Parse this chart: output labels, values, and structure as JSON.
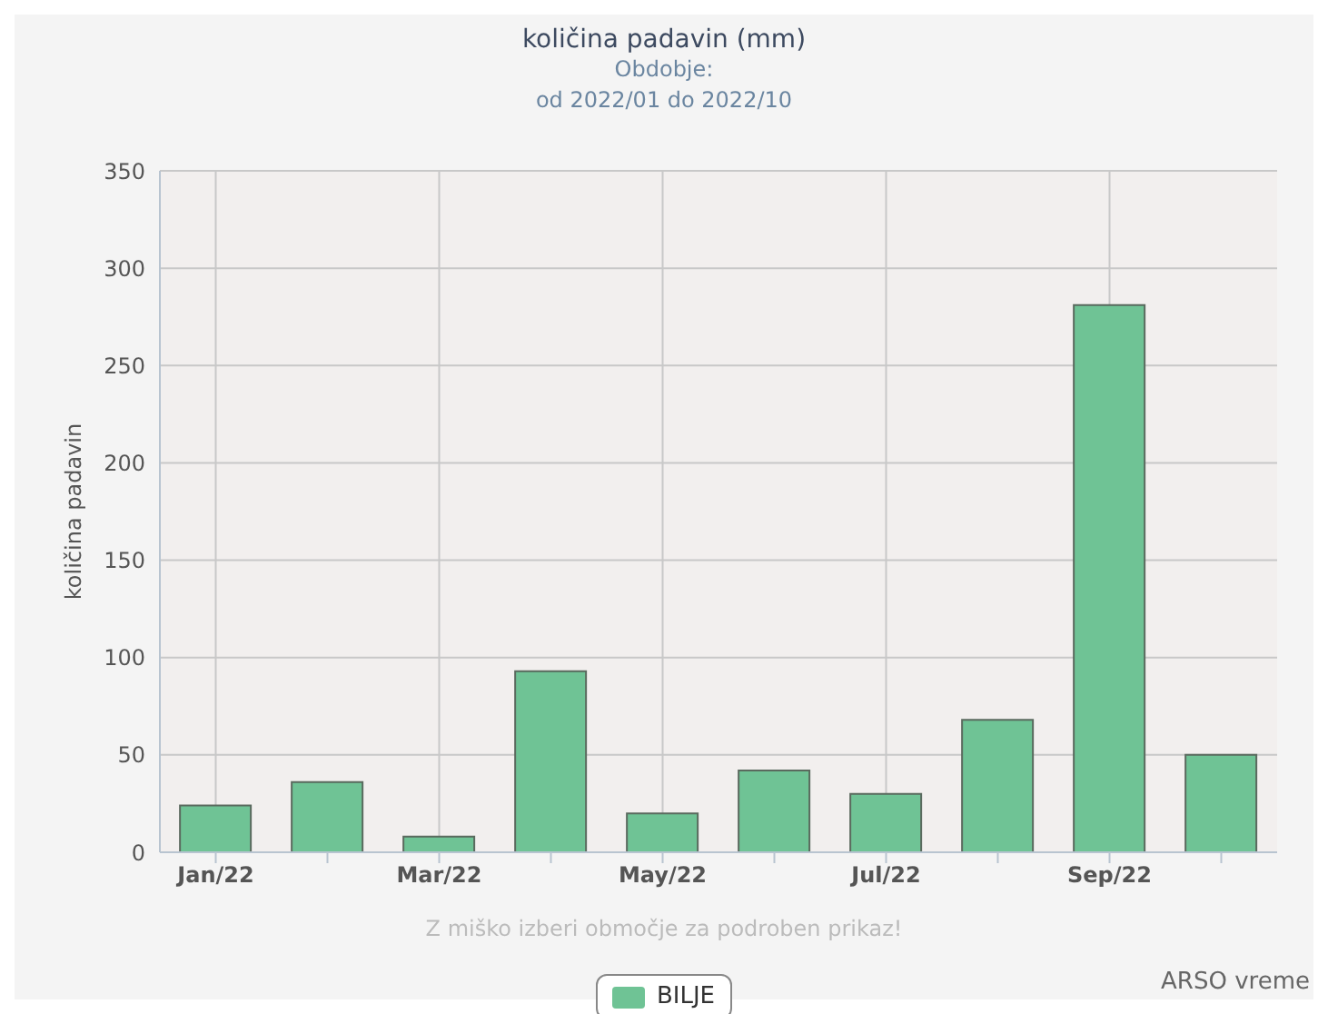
{
  "chart_data": {
    "type": "bar",
    "title": "količina padavin (mm)",
    "subtitle": "Obdobje:\nod 2022/01 do 2022/10",
    "ylabel": "količina padavin",
    "categories": [
      "Jan/22",
      null,
      "Mar/22",
      null,
      "May/22",
      null,
      "Jul/22",
      null,
      "Sep/22",
      null
    ],
    "series": [
      {
        "name": "BILJE",
        "color": "#6fc395",
        "values": [
          24,
          36,
          8,
          93,
          20,
          42,
          30,
          68,
          281,
          50
        ]
      }
    ],
    "ylim": [
      0,
      350
    ],
    "yticks": [
      0,
      50,
      100,
      150,
      200,
      250,
      300,
      350
    ],
    "grid": true,
    "legend": "bottom",
    "annotations": [
      "Z miško izberi območje za podroben prikaz!",
      "ARSO vreme"
    ]
  }
}
